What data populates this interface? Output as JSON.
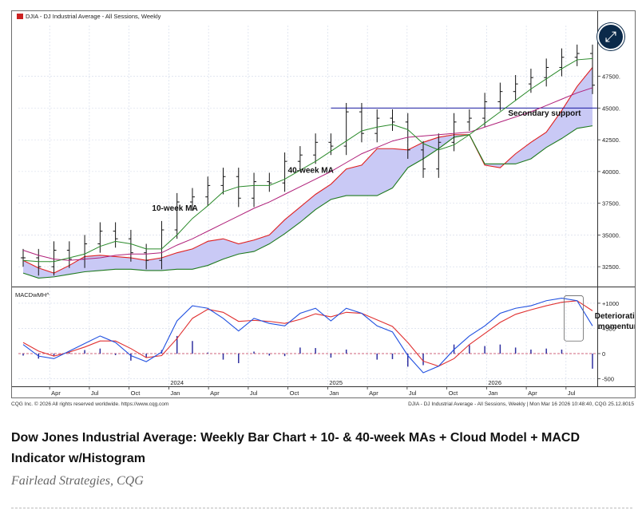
{
  "chart_header": "DJIA - DJ Industrial Average - All Sessions, Weekly",
  "macd_label": "MACDwMH^",
  "footer": {
    "left": "CQG Inc. © 2026 All rights reserved worldwide. https://www.cqg.com",
    "right": "DJIA - DJ Industrial Average - All Sessions, Weekly | Mon Mar 16 2026 10:48:40, CQG 25.12.8015"
  },
  "caption": "Dow Jones Industrial Average: Weekly Bar Chart + 10- & 40-week MAs + Cloud Model + MACD Indicator w/Histogram",
  "credit": "Fairlead Strategies, CQG",
  "colors": {
    "price_bar": "#111111",
    "ma10": "#2a8a2a",
    "ma40": "#b0207a",
    "cloud_fill": "#c9c9f5",
    "cloud_top": "#e02020",
    "cloud_bottom": "#1f7a1f",
    "support": "#1a1aa0",
    "macd": "#2050e0",
    "signal": "#e03030",
    "histogram": "#3030a0",
    "zero_line": "#c03050"
  },
  "chart_data": {
    "type": "line",
    "price_panel": {
      "ylim": [
        31000,
        51500
      ],
      "yticks": [
        "32500.",
        "35000.",
        "37500.",
        "40000.",
        "42500.",
        "45000.",
        "47500."
      ],
      "ytick_values": [
        32500,
        35000,
        37500,
        40000,
        42500,
        45000,
        47500
      ],
      "annotations": [
        "10-week MA",
        "40-week MA",
        "Secondary support"
      ],
      "secondary_support": 45000,
      "x": [
        "2023-02",
        "2023-03",
        "2023-04",
        "2023-05",
        "2023-06",
        "2023-07",
        "2023-08",
        "2023-09",
        "2023-10",
        "2023-11",
        "2023-12",
        "2024-01",
        "2024-02",
        "2024-03",
        "2024-04",
        "2024-05",
        "2024-06",
        "2024-07",
        "2024-08",
        "2024-09",
        "2024-10",
        "2024-11",
        "2024-12",
        "2025-01",
        "2025-02",
        "2025-03",
        "2025-04",
        "2025-05",
        "2025-06",
        "2025-07",
        "2025-08",
        "2025-09",
        "2025-10",
        "2025-11",
        "2025-12",
        "2026-01",
        "2026-02",
        "2026-03"
      ],
      "close": [
        33200,
        32500,
        33800,
        33100,
        34300,
        35300,
        34700,
        33600,
        33000,
        35400,
        37600,
        38000,
        38900,
        39600,
        37900,
        39200,
        39100,
        40800,
        41300,
        42300,
        42000,
        44700,
        43000,
        44200,
        43900,
        41700,
        40200,
        42300,
        43900,
        44200,
        45500,
        46300,
        46900,
        47400,
        48200,
        49000,
        49300,
        46800
      ],
      "ma10": [
        33000,
        32900,
        32900,
        33200,
        33500,
        34100,
        34500,
        34300,
        33900,
        33900,
        35000,
        36300,
        37300,
        38400,
        38800,
        38900,
        38900,
        39400,
        40100,
        40800,
        41600,
        42400,
        43200,
        43500,
        43700,
        43300,
        42200,
        41700,
        42100,
        42900,
        43800,
        44700,
        45600,
        46500,
        47300,
        48100,
        48800,
        48900
      ],
      "ma40": [
        33800,
        33400,
        33100,
        33000,
        33100,
        33200,
        33400,
        33500,
        33500,
        33600,
        34200,
        34700,
        35300,
        35900,
        36500,
        37100,
        37600,
        38200,
        38800,
        39400,
        40000,
        40700,
        41400,
        41900,
        42400,
        42700,
        42800,
        42900,
        43000,
        43100,
        43500,
        43900,
        44300,
        44700,
        45200,
        45700,
        46200,
        46600
      ],
      "cloud_top": [
        33000,
        32400,
        32000,
        32600,
        33300,
        33400,
        33300,
        33200,
        33000,
        33200,
        33600,
        33900,
        34500,
        34700,
        34300,
        34600,
        35000,
        36200,
        37200,
        38200,
        39000,
        40200,
        40500,
        41800,
        41800,
        41700,
        42300,
        42700,
        42900,
        42900,
        40500,
        40300,
        41400,
        42300,
        43100,
        44800,
        46700,
        48200
      ],
      "cloud_bottom": [
        32000,
        31600,
        31700,
        31900,
        32100,
        32200,
        32300,
        32300,
        32200,
        32200,
        32300,
        32300,
        32600,
        33100,
        33500,
        33700,
        34300,
        35100,
        36000,
        37000,
        37800,
        38100,
        38100,
        38100,
        38700,
        40300,
        41000,
        41800,
        42700,
        42900,
        40600,
        40600,
        40600,
        41000,
        41900,
        42600,
        43400,
        43600
      ]
    },
    "macd_panel": {
      "ylim": [
        -650,
        1300
      ],
      "yticks": [
        "+1000",
        "+500",
        "0",
        "-500"
      ],
      "ytick_values": [
        1000,
        500,
        0,
        -500
      ],
      "annotations": [
        "Deteriorating momentum"
      ],
      "macd": [
        180,
        -50,
        -100,
        50,
        200,
        350,
        220,
        -40,
        -160,
        30,
        650,
        950,
        900,
        700,
        450,
        700,
        600,
        550,
        800,
        900,
        650,
        900,
        800,
        550,
        430,
        -40,
        -380,
        -250,
        80,
        350,
        550,
        800,
        900,
        950,
        1050,
        1100,
        1050,
        550
      ],
      "signal": [
        220,
        50,
        -50,
        30,
        130,
        250,
        250,
        100,
        -80,
        -40,
        300,
        700,
        880,
        820,
        640,
        660,
        640,
        600,
        680,
        790,
        730,
        820,
        800,
        670,
        540,
        220,
        -150,
        -250,
        -100,
        180,
        400,
        620,
        780,
        870,
        950,
        1020,
        1050,
        850
      ],
      "histogram": [
        -40,
        -100,
        -50,
        20,
        70,
        100,
        -30,
        -140,
        -80,
        70,
        350,
        250,
        20,
        -120,
        -190,
        40,
        -40,
        -50,
        120,
        110,
        -80,
        80,
        0,
        -120,
        -110,
        -260,
        -230,
        0,
        180,
        170,
        150,
        180,
        120,
        80,
        100,
        80,
        0,
        -300
      ]
    },
    "x_axis": {
      "tick_labels": [
        "Apr",
        "Jul",
        "Oct",
        "Jan",
        "Apr",
        "Jul",
        "Oct",
        "Jan",
        "Apr",
        "Jul",
        "Oct",
        "Jan",
        "Apr",
        "Jul"
      ],
      "year_labels": [
        "2024",
        "2025",
        "2026"
      ]
    }
  }
}
